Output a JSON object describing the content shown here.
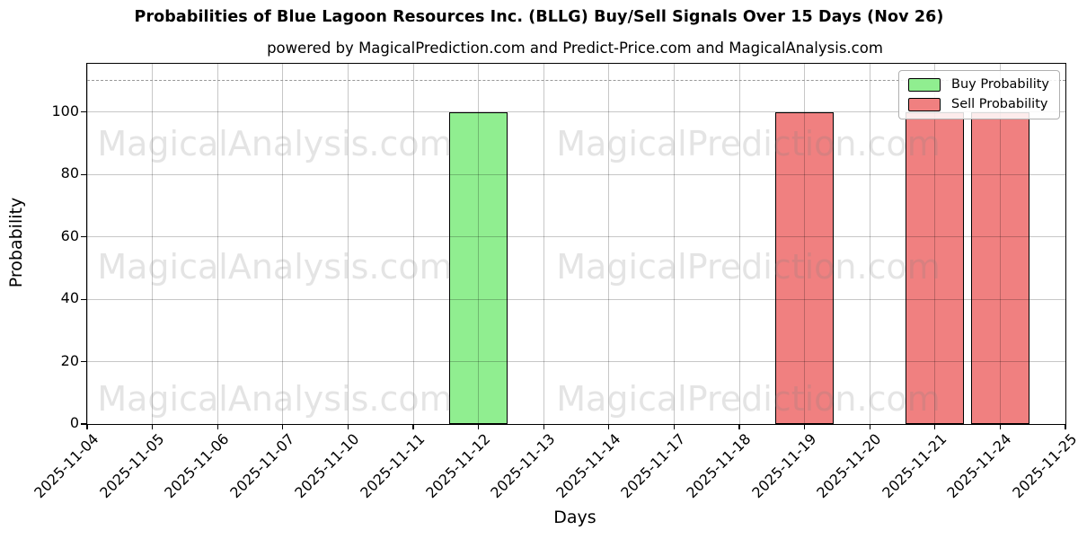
{
  "chart_data": {
    "type": "bar",
    "title": "Probabilities of Blue Lagoon Resources Inc. (BLLG) Buy/Sell Signals Over 15 Days (Nov 26)",
    "subtitle": "powered by MagicalPrediction.com and Predict-Price.com and MagicalAnalysis.com",
    "xlabel": "Days",
    "ylabel": "Probability",
    "categories": [
      "2025-11-04",
      "2025-11-05",
      "2025-11-06",
      "2025-11-07",
      "2025-11-10",
      "2025-11-11",
      "2025-11-12",
      "2025-11-13",
      "2025-11-14",
      "2025-11-17",
      "2025-11-18",
      "2025-11-19",
      "2025-11-20",
      "2025-11-21",
      "2025-11-24",
      "2025-11-25"
    ],
    "series": [
      {
        "name": "Buy Probability",
        "color": "#90EE90",
        "values": [
          0,
          0,
          0,
          0,
          0,
          0,
          100,
          0,
          0,
          0,
          0,
          0,
          0,
          0,
          0,
          0
        ]
      },
      {
        "name": "Sell Probability",
        "color": "#F08080",
        "values": [
          0,
          0,
          0,
          0,
          0,
          0,
          0,
          0,
          0,
          0,
          0,
          100,
          0,
          100,
          100,
          0
        ]
      }
    ],
    "yticks": [
      0,
      20,
      40,
      60,
      80,
      100
    ],
    "ylim": [
      0,
      115.5
    ],
    "threshold_line": 110,
    "legend_position": "upper right",
    "grid": true,
    "bar_edge_color": "#000000",
    "threshold_color": "#999999"
  },
  "watermarks": [
    "MagicalAnalysis.com",
    "MagicalPrediction.com"
  ]
}
